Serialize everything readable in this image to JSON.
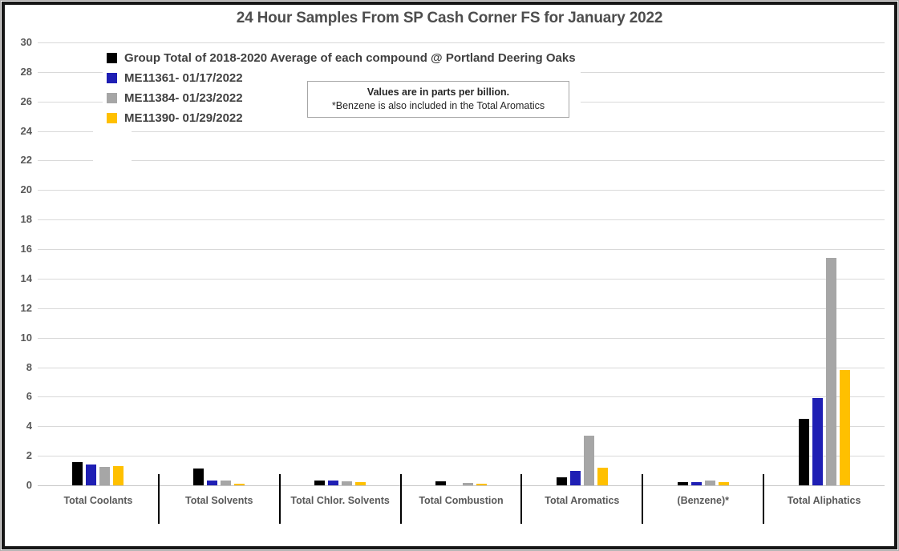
{
  "chart_data": {
    "type": "bar",
    "title": "24 Hour Samples From SP Cash Corner FS for January 2022",
    "units_note": "parts per billion",
    "categories": [
      "Total Coolants",
      "Total Solvents",
      "Total Chlor. Solvents",
      "Total Combustion",
      "Total Aromatics",
      "(Benzene)*",
      "Total Aliphatics"
    ],
    "series": [
      {
        "name": "Group Total of 2018-2020 Average of each compound @ Portland Deering Oaks",
        "color": "#000000",
        "values": [
          1.55,
          1.15,
          0.3,
          0.25,
          0.55,
          0.2,
          4.5
        ]
      },
      {
        "name": "ME11361- 01/17/2022",
        "color": "#1f1fb4",
        "values": [
          1.4,
          0.3,
          0.3,
          0,
          1.0,
          0.2,
          5.9
        ]
      },
      {
        "name": "ME11384- 01/23/2022",
        "color": "#a6a6a6",
        "values": [
          1.25,
          0.3,
          0.25,
          0.15,
          3.35,
          0.3,
          15.4
        ]
      },
      {
        "name": "ME11390- 01/29/2022",
        "color": "#ffc000",
        "values": [
          1.3,
          0.1,
          0.2,
          0.1,
          1.2,
          0.2,
          7.8
        ]
      }
    ],
    "ylim": [
      0,
      30
    ],
    "ytick_step": 2,
    "grid": true,
    "legend_position": "top-left",
    "annotation": {
      "line1": "Values are in parts per billion.",
      "line2": "*Benzene is also included in the Total Aromatics"
    },
    "gridline_color": "#d9d9d9",
    "text_color": "#595959"
  }
}
